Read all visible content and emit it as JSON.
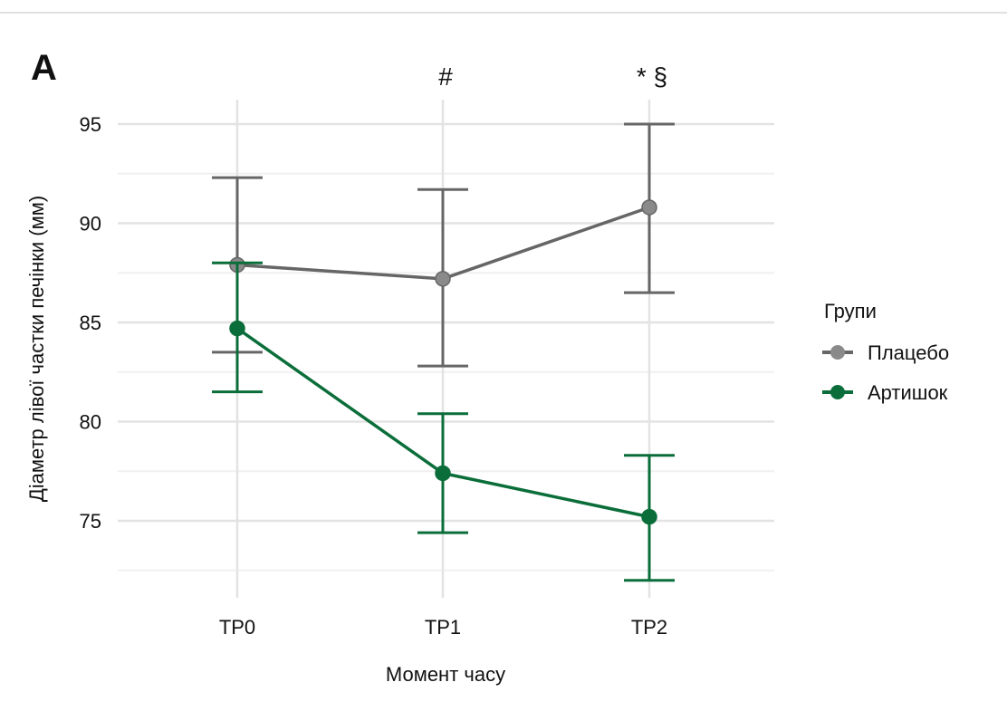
{
  "chart_data": {
    "type": "line",
    "panel_label": "A",
    "xlabel": "Момент часу",
    "ylabel": "Діаметр лівої частки печінки (мм)",
    "categories": [
      "TP0",
      "TP1",
      "TP2"
    ],
    "ylim": [
      70.5,
      96.2
    ],
    "yticks": [
      75,
      80,
      85,
      90,
      95
    ],
    "grid": true,
    "annotations": [
      {
        "category": "TP1",
        "text": "#"
      },
      {
        "category": "TP2",
        "text": "* §"
      }
    ],
    "legend": {
      "title": "Групи",
      "placement": "right"
    },
    "series": [
      {
        "name": "Плацебо",
        "color": "#8a8a8a",
        "line_color": "#666666",
        "values": [
          87.9,
          87.2,
          90.8
        ],
        "lower": [
          83.5,
          82.8,
          86.5
        ],
        "upper": [
          92.3,
          91.7,
          95.0
        ]
      },
      {
        "name": "Артишок",
        "color": "#0b6e3a",
        "line_color": "#0b6e3a",
        "values": [
          84.7,
          77.4,
          75.2
        ],
        "lower": [
          81.5,
          74.4,
          72.0
        ],
        "upper": [
          88.0,
          80.4,
          78.3
        ]
      }
    ]
  }
}
